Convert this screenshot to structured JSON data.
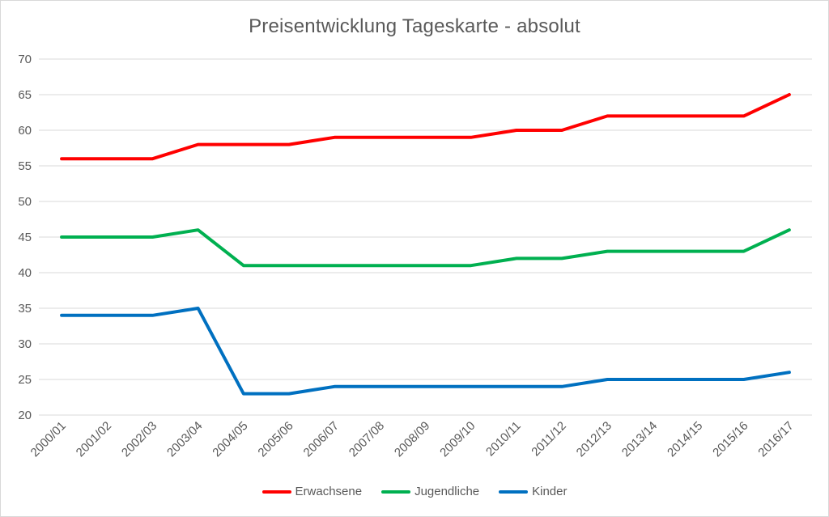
{
  "chart_data": {
    "type": "line",
    "title": "Preisentwicklung Tageskarte - absolut",
    "categories": [
      "2000/01",
      "2001/02",
      "2002/03",
      "2003/04",
      "2004/05",
      "2005/06",
      "2006/07",
      "2007/08",
      "2008/09",
      "2009/10",
      "2010/11",
      "2011/12",
      "2012/13",
      "2013/14",
      "2014/15",
      "2015/16",
      "2016/17"
    ],
    "series": [
      {
        "name": "Erwachsene",
        "color": "#FF0000",
        "values": [
          56,
          56,
          56,
          58,
          58,
          58,
          59,
          59,
          59,
          59,
          60,
          60,
          62,
          62,
          62,
          62,
          65
        ]
      },
      {
        "name": "Jugendliche",
        "color": "#00B050",
        "values": [
          45,
          45,
          45,
          46,
          41,
          41,
          41,
          41,
          41,
          41,
          42,
          42,
          43,
          43,
          43,
          43,
          46
        ]
      },
      {
        "name": "Kinder",
        "color": "#0070C0",
        "values": [
          34,
          34,
          34,
          35,
          23,
          23,
          24,
          24,
          24,
          24,
          24,
          24,
          25,
          25,
          25,
          25,
          26
        ]
      }
    ],
    "ylim": [
      20,
      70
    ],
    "yticks": [
      20,
      25,
      30,
      35,
      40,
      45,
      50,
      55,
      60,
      65,
      70
    ],
    "xlabel": "",
    "ylabel": "",
    "grid": true,
    "legend_position": "bottom"
  },
  "colors": {
    "grid": "#D9D9D9",
    "axis_text": "#595959",
    "title_text": "#595959",
    "frame_border": "#D9D9D9",
    "background": "#FFFFFF"
  }
}
